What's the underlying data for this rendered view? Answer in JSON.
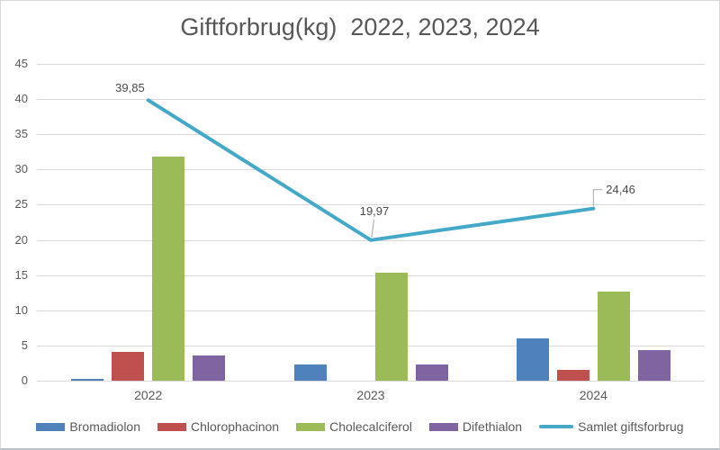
{
  "title": "Giftforbrug(kg)  2022, 2023, 2024",
  "chart_data": {
    "type": "bar",
    "subtype": "grouped bars with overlaid line series",
    "categories": [
      "2022",
      "2023",
      "2024"
    ],
    "series": [
      {
        "name": "Bromadiolon",
        "type": "bar",
        "color": "#4F81BD",
        "values": [
          0.3,
          2.32,
          6.0
        ]
      },
      {
        "name": "Chlorophacinon",
        "type": "bar",
        "color": "#C0504D",
        "values": [
          4.15,
          0,
          1.5
        ]
      },
      {
        "name": "Cholecalciferol",
        "type": "bar",
        "color": "#9BBB59",
        "values": [
          31.8,
          15.4,
          12.66
        ]
      },
      {
        "name": "Difethialon",
        "type": "bar",
        "color": "#8064A2",
        "values": [
          3.6,
          2.25,
          4.3
        ]
      },
      {
        "name": "Samlet giftsforbrug",
        "type": "line",
        "color": "#44A8C7",
        "values": [
          39.85,
          19.97,
          24.46
        ],
        "data_labels": [
          "39,85",
          "19,97",
          "24,46"
        ]
      }
    ],
    "title": "Giftforbrug(kg)  2022, 2023, 2024",
    "xlabel": "",
    "ylabel": "",
    "ylim": [
      0,
      45
    ],
    "ytick_step": 5,
    "yticks": [
      0,
      5,
      10,
      15,
      20,
      25,
      30,
      35,
      40,
      45
    ],
    "grid": "horizontal",
    "legend_position": "bottom"
  },
  "colors": {
    "gridline": "#d9d9d9",
    "axis_text": "#595959",
    "title_text": "#575757",
    "data_label_text": "#4a4a4a",
    "leader_line": "#a6a6a6",
    "background": "#ffffff"
  }
}
